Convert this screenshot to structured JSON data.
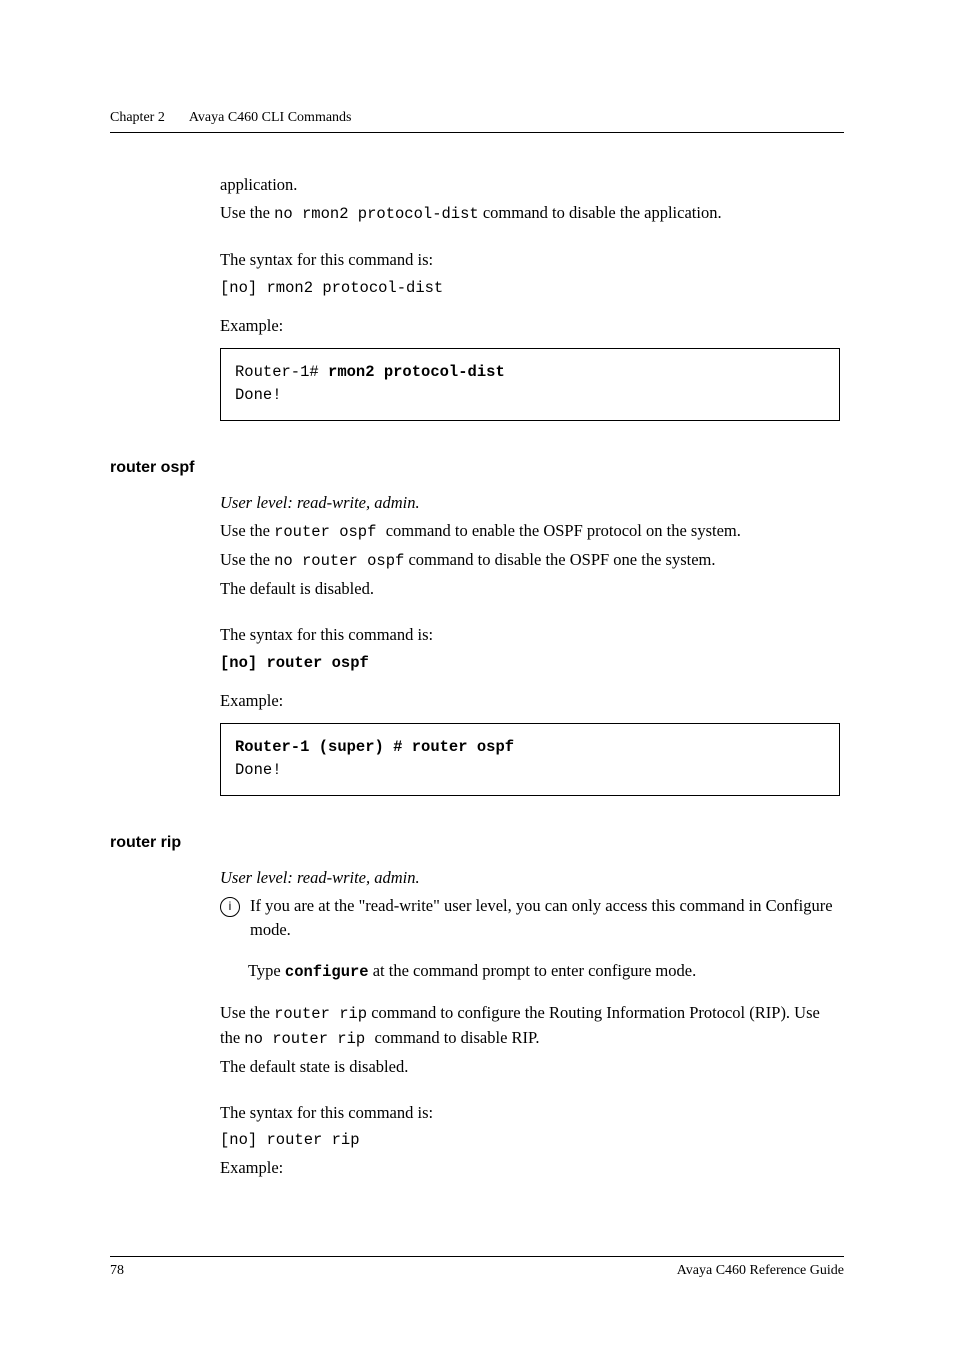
{
  "header": {
    "chapter": "Chapter 2",
    "title": "Avaya C460 CLI Commands"
  },
  "intro": {
    "line1": "application.",
    "line2a": "Use the ",
    "line2_cmd": "no rmon2 protocol-dist",
    "line2b": " command to disable the application.",
    "syntax_label": "The syntax for this command is:",
    "syntax_cmd": "[no] rmon2 protocol-dist",
    "example_label": "Example:",
    "code_l1a": "Router-1# ",
    "code_l1b": "rmon2 protocol-dist",
    "code_l2": "Done!"
  },
  "ospf": {
    "heading": "router ospf",
    "userlevel": "User level: read-write, admin.",
    "l1a": "Use the ",
    "l1_cmd": " router ospf ",
    "l1b": " command to enable the OSPF protocol on the system.",
    "l2a": "Use the ",
    "l2_cmd": " no router ospf",
    "l2b": " command to disable the OSPF one the system.",
    "l3": "The default is disabled.",
    "syntax_label": "The syntax for this command is:",
    "syntax_cmd": "[no] router ospf",
    "example_label": "Example:",
    "code_l1": "Router-1 (super) # router ospf",
    "code_l2": "Done!"
  },
  "rip": {
    "heading": "router rip",
    "userlevel": "User level: read-write, admin.",
    "info_icon": "i",
    "info_text": "If you are at the \"read-write\" user level, you can only access this command in Configure mode.",
    "info_sub_a": "Type ",
    "info_sub_cmd": "configure",
    "info_sub_b": " at the command prompt to enter configure mode.",
    "l1a": "Use the ",
    "l1_cmd": "router rip",
    "l1b": " command to configure the Routing Information Protocol (RIP). Use the ",
    "l1_cmd2": "no router rip ",
    "l1c": " command to disable RIP.",
    "l2": "The default state is disabled.",
    "syntax_label": "The syntax for this command is:",
    "syntax_cmd": "[no] router rip",
    "example_label": "Example:"
  },
  "footer": {
    "page": "78",
    "doc": "Avaya C460 Reference Guide"
  }
}
